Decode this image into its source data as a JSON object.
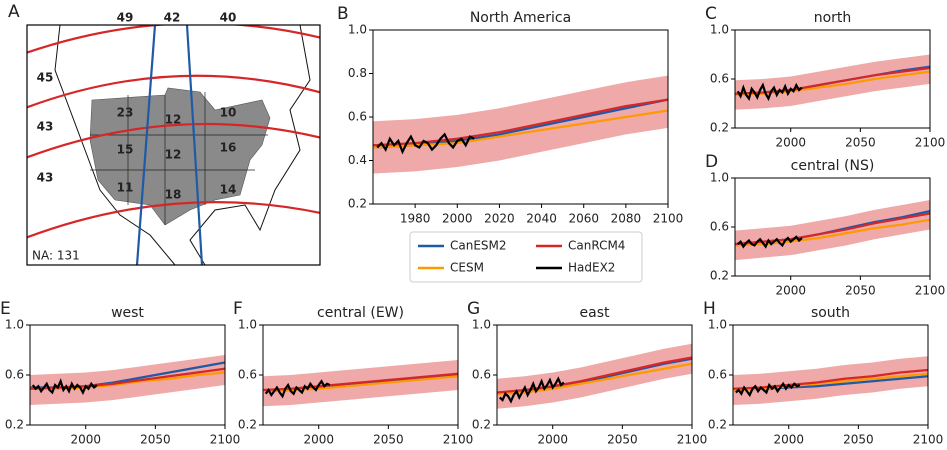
{
  "chart_data": [
    {
      "type": "map",
      "label": "A",
      "meridians": [
        "49",
        "42",
        "40"
      ],
      "parallels": [
        "45",
        "43",
        "43"
      ],
      "regions": [
        "23",
        "12",
        "10",
        "15",
        "12",
        "16",
        "11",
        "18",
        "14"
      ],
      "note": "NA: 131"
    },
    {
      "type": "line",
      "label": "B",
      "title": "North America",
      "legend": "below",
      "xlim": [
        1960,
        2100
      ],
      "ylim": [
        0.2,
        1
      ],
      "xticks": [
        1980,
        2000,
        2020,
        2040,
        2060,
        2080,
        2100
      ],
      "yticks": [
        0.2,
        0.4,
        0.6,
        0.8,
        {
          "value": 1,
          "label": "1.0"
        }
      ],
      "x": [
        1960,
        1980,
        2000,
        2020,
        2040,
        2060,
        2080,
        2100
      ],
      "series": [
        {
          "name": "CanESM2",
          "color": "#1f5aa6",
          "values": [
            0.46,
            0.47,
            0.49,
            0.52,
            0.56,
            0.6,
            0.64,
            0.68
          ]
        },
        {
          "name": "CESM",
          "color": "#ff9900",
          "values": [
            0.46,
            0.47,
            0.48,
            0.51,
            0.54,
            0.57,
            0.6,
            0.63
          ]
        },
        {
          "name": "CanRCM4",
          "color": "#d62728",
          "values": [
            0.47,
            0.48,
            0.5,
            0.53,
            0.57,
            0.61,
            0.65,
            0.68
          ],
          "lower": [
            0.34,
            0.35,
            0.37,
            0.4,
            0.44,
            0.48,
            0.52,
            0.55
          ],
          "upper": [
            0.58,
            0.59,
            0.61,
            0.64,
            0.68,
            0.72,
            0.76,
            0.79
          ]
        },
        {
          "name": "HadEX2",
          "color": "#000000",
          "x": [
            1962,
            1964,
            1966,
            1968,
            1970,
            1972,
            1974,
            1976,
            1978,
            1980,
            1982,
            1984,
            1986,
            1988,
            1990,
            1992,
            1994,
            1996,
            1998,
            2000,
            2002,
            2004,
            2006,
            2008
          ],
          "values": [
            0.46,
            0.48,
            0.45,
            0.5,
            0.47,
            0.49,
            0.44,
            0.48,
            0.51,
            0.47,
            0.46,
            0.49,
            0.48,
            0.45,
            0.47,
            0.5,
            0.52,
            0.48,
            0.46,
            0.49,
            0.5,
            0.47,
            0.51,
            0.5
          ]
        }
      ]
    },
    {
      "type": "line",
      "label": "C",
      "title": "north",
      "xlim": [
        1960,
        2100
      ],
      "ylim": [
        0.2,
        1
      ],
      "xticks": [
        2000,
        2050,
        2100
      ],
      "yticks": [
        0.2,
        0.6,
        {
          "value": 1,
          "label": "1.0"
        }
      ],
      "x": [
        1960,
        1980,
        2000,
        2020,
        2040,
        2060,
        2080,
        2100
      ],
      "series": [
        {
          "color": "#1f5aa6",
          "values": [
            0.48,
            0.49,
            0.51,
            0.55,
            0.59,
            0.63,
            0.67,
            0.7
          ]
        },
        {
          "color": "#ff9900",
          "values": [
            0.47,
            0.48,
            0.5,
            0.53,
            0.56,
            0.6,
            0.63,
            0.66
          ]
        },
        {
          "color": "#d62728",
          "values": [
            0.48,
            0.49,
            0.51,
            0.55,
            0.59,
            0.63,
            0.66,
            0.69
          ],
          "lower": [
            0.35,
            0.36,
            0.38,
            0.42,
            0.46,
            0.5,
            0.53,
            0.56
          ],
          "upper": [
            0.59,
            0.6,
            0.62,
            0.66,
            0.7,
            0.74,
            0.77,
            0.8
          ]
        },
        {
          "color": "#000000",
          "x": [
            1962,
            1964,
            1966,
            1968,
            1970,
            1972,
            1974,
            1976,
            1978,
            1980,
            1982,
            1984,
            1986,
            1988,
            1990,
            1992,
            1994,
            1996,
            1998,
            2000,
            2002,
            2004,
            2006,
            2008
          ],
          "values": [
            0.5,
            0.46,
            0.53,
            0.47,
            0.44,
            0.52,
            0.49,
            0.45,
            0.51,
            0.55,
            0.48,
            0.44,
            0.5,
            0.53,
            0.47,
            0.51,
            0.49,
            0.54,
            0.48,
            0.52,
            0.5,
            0.55,
            0.51,
            0.53
          ]
        }
      ]
    },
    {
      "type": "line",
      "label": "D",
      "title": "central (NS)",
      "xlim": [
        1960,
        2100
      ],
      "ylim": [
        0.2,
        1
      ],
      "xticks": [
        2000,
        2050,
        2100
      ],
      "yticks": [
        0.2,
        0.6,
        {
          "value": 1,
          "label": "1.0"
        }
      ],
      "x": [
        1960,
        1980,
        2000,
        2020,
        2040,
        2060,
        2080,
        2100
      ],
      "series": [
        {
          "color": "#1f5aa6",
          "values": [
            0.46,
            0.48,
            0.5,
            0.54,
            0.59,
            0.64,
            0.68,
            0.73
          ]
        },
        {
          "color": "#ff9900",
          "values": [
            0.45,
            0.46,
            0.48,
            0.51,
            0.55,
            0.59,
            0.62,
            0.66
          ]
        },
        {
          "color": "#d62728",
          "values": [
            0.46,
            0.48,
            0.5,
            0.54,
            0.58,
            0.63,
            0.67,
            0.71
          ],
          "lower": [
            0.33,
            0.35,
            0.37,
            0.41,
            0.45,
            0.5,
            0.54,
            0.58
          ],
          "upper": [
            0.57,
            0.59,
            0.61,
            0.65,
            0.69,
            0.74,
            0.78,
            0.82
          ]
        },
        {
          "color": "#000000",
          "x": [
            1962,
            1964,
            1966,
            1968,
            1970,
            1972,
            1974,
            1976,
            1978,
            1980,
            1982,
            1984,
            1986,
            1988,
            1990,
            1992,
            1994,
            1996,
            1998,
            2000,
            2002,
            2004,
            2006,
            2008
          ],
          "values": [
            0.46,
            0.48,
            0.44,
            0.47,
            0.49,
            0.46,
            0.45,
            0.48,
            0.5,
            0.47,
            0.44,
            0.49,
            0.46,
            0.48,
            0.5,
            0.47,
            0.45,
            0.49,
            0.51,
            0.48,
            0.5,
            0.52,
            0.49,
            0.51
          ]
        }
      ]
    },
    {
      "type": "line",
      "label": "E",
      "title": "west",
      "xlim": [
        1960,
        2100
      ],
      "ylim": [
        0.2,
        1
      ],
      "xticks": [
        2000,
        2050,
        2100
      ],
      "yticks": [
        0.2,
        0.6,
        {
          "value": 1,
          "label": "1.0"
        }
      ],
      "x": [
        1960,
        1980,
        2000,
        2020,
        2040,
        2060,
        2080,
        2100
      ],
      "series": [
        {
          "color": "#1f5aa6",
          "values": [
            0.5,
            0.5,
            0.51,
            0.54,
            0.58,
            0.62,
            0.66,
            0.7
          ]
        },
        {
          "color": "#ff9900",
          "values": [
            0.49,
            0.49,
            0.5,
            0.52,
            0.55,
            0.57,
            0.6,
            0.62
          ]
        },
        {
          "color": "#d62728",
          "values": [
            0.49,
            0.5,
            0.51,
            0.53,
            0.56,
            0.59,
            0.62,
            0.65
          ],
          "lower": [
            0.36,
            0.37,
            0.38,
            0.4,
            0.43,
            0.46,
            0.49,
            0.52
          ],
          "upper": [
            0.6,
            0.61,
            0.62,
            0.64,
            0.67,
            0.7,
            0.73,
            0.76
          ]
        },
        {
          "color": "#000000",
          "x": [
            1962,
            1964,
            1966,
            1968,
            1970,
            1972,
            1974,
            1976,
            1978,
            1980,
            1982,
            1984,
            1986,
            1988,
            1990,
            1992,
            1994,
            1996,
            1998,
            2000,
            2002,
            2004,
            2006,
            2008
          ],
          "values": [
            0.52,
            0.49,
            0.51,
            0.47,
            0.5,
            0.53,
            0.48,
            0.46,
            0.52,
            0.5,
            0.55,
            0.48,
            0.51,
            0.47,
            0.53,
            0.49,
            0.52,
            0.5,
            0.46,
            0.51,
            0.49,
            0.53,
            0.5,
            0.52
          ]
        }
      ]
    },
    {
      "type": "line",
      "label": "F",
      "title": "central (EW)",
      "xlim": [
        1960,
        2100
      ],
      "ylim": [
        0.2,
        1
      ],
      "xticks": [
        2000,
        2050,
        2100
      ],
      "yticks": [
        0.2,
        0.6,
        {
          "value": 1,
          "label": "1.0"
        }
      ],
      "x": [
        1960,
        1980,
        2000,
        2020,
        2040,
        2060,
        2080,
        2100
      ],
      "series": [
        {
          "color": "#1f5aa6",
          "values": [
            0.47,
            0.48,
            0.5,
            0.52,
            0.54,
            0.56,
            0.58,
            0.6
          ]
        },
        {
          "color": "#ff9900",
          "values": [
            0.47,
            0.48,
            0.49,
            0.51,
            0.53,
            0.55,
            0.57,
            0.59
          ]
        },
        {
          "color": "#d62728",
          "values": [
            0.48,
            0.49,
            0.51,
            0.53,
            0.55,
            0.57,
            0.59,
            0.61
          ],
          "lower": [
            0.35,
            0.36,
            0.38,
            0.4,
            0.42,
            0.44,
            0.46,
            0.48
          ],
          "upper": [
            0.59,
            0.6,
            0.62,
            0.64,
            0.66,
            0.68,
            0.7,
            0.72
          ]
        },
        {
          "color": "#000000",
          "x": [
            1962,
            1964,
            1966,
            1968,
            1970,
            1972,
            1974,
            1976,
            1978,
            1980,
            1982,
            1984,
            1986,
            1988,
            1990,
            1992,
            1994,
            1996,
            1998,
            2000,
            2002,
            2004,
            2006,
            2008
          ],
          "values": [
            0.45,
            0.48,
            0.44,
            0.47,
            0.5,
            0.46,
            0.43,
            0.49,
            0.52,
            0.47,
            0.45,
            0.5,
            0.48,
            0.46,
            0.51,
            0.49,
            0.53,
            0.5,
            0.48,
            0.52,
            0.55,
            0.51,
            0.53,
            0.52
          ]
        }
      ]
    },
    {
      "type": "line",
      "label": "G",
      "title": "east",
      "xlim": [
        1960,
        2100
      ],
      "ylim": [
        0.2,
        1
      ],
      "xticks": [
        2000,
        2050,
        2100
      ],
      "yticks": [
        0.2,
        0.6,
        {
          "value": 1,
          "label": "1.0"
        }
      ],
      "x": [
        1960,
        1980,
        2000,
        2020,
        2040,
        2060,
        2080,
        2100
      ],
      "series": [
        {
          "color": "#1f5aa6",
          "values": [
            0.45,
            0.47,
            0.5,
            0.54,
            0.59,
            0.64,
            0.69,
            0.73
          ]
        },
        {
          "color": "#ff9900",
          "values": [
            0.45,
            0.46,
            0.49,
            0.53,
            0.57,
            0.61,
            0.65,
            0.69
          ]
        },
        {
          "color": "#d62728",
          "values": [
            0.46,
            0.48,
            0.51,
            0.55,
            0.6,
            0.65,
            0.7,
            0.74
          ],
          "lower": [
            0.33,
            0.35,
            0.38,
            0.42,
            0.47,
            0.52,
            0.57,
            0.61
          ],
          "upper": [
            0.57,
            0.59,
            0.62,
            0.66,
            0.71,
            0.76,
            0.81,
            0.85
          ]
        },
        {
          "color": "#000000",
          "x": [
            1962,
            1964,
            1966,
            1968,
            1970,
            1972,
            1974,
            1976,
            1978,
            1980,
            1982,
            1984,
            1986,
            1988,
            1990,
            1992,
            1994,
            1996,
            1998,
            2000,
            2002,
            2004,
            2006,
            2008
          ],
          "values": [
            0.42,
            0.4,
            0.45,
            0.43,
            0.39,
            0.44,
            0.47,
            0.42,
            0.46,
            0.5,
            0.44,
            0.48,
            0.53,
            0.47,
            0.5,
            0.55,
            0.49,
            0.52,
            0.56,
            0.5,
            0.53,
            0.57,
            0.52,
            0.54
          ]
        }
      ]
    },
    {
      "type": "line",
      "label": "H",
      "title": "south",
      "xlim": [
        1960,
        2100
      ],
      "ylim": [
        0.2,
        1
      ],
      "xticks": [
        2000,
        2050,
        2100
      ],
      "yticks": [
        0.2,
        0.6,
        {
          "value": 1,
          "label": "1.0"
        }
      ],
      "x": [
        1960,
        1980,
        2000,
        2020,
        2040,
        2060,
        2080,
        2100
      ],
      "series": [
        {
          "color": "#1f5aa6",
          "values": [
            0.48,
            0.49,
            0.5,
            0.51,
            0.53,
            0.55,
            0.57,
            0.59
          ]
        },
        {
          "color": "#ff9900",
          "values": [
            0.48,
            0.49,
            0.51,
            0.53,
            0.55,
            0.57,
            0.59,
            0.61
          ]
        },
        {
          "color": "#d62728",
          "values": [
            0.49,
            0.5,
            0.52,
            0.54,
            0.57,
            0.59,
            0.62,
            0.64
          ],
          "lower": [
            0.36,
            0.37,
            0.39,
            0.41,
            0.44,
            0.46,
            0.49,
            0.51
          ],
          "upper": [
            0.6,
            0.61,
            0.63,
            0.65,
            0.68,
            0.7,
            0.73,
            0.75
          ]
        },
        {
          "color": "#000000",
          "x": [
            1962,
            1964,
            1966,
            1968,
            1970,
            1972,
            1974,
            1976,
            1978,
            1980,
            1982,
            1984,
            1986,
            1988,
            1990,
            1992,
            1994,
            1996,
            1998,
            2000,
            2002,
            2004,
            2006,
            2008
          ],
          "values": [
            0.46,
            0.48,
            0.45,
            0.5,
            0.47,
            0.44,
            0.49,
            0.51,
            0.47,
            0.5,
            0.48,
            0.46,
            0.52,
            0.49,
            0.51,
            0.47,
            0.5,
            0.53,
            0.49,
            0.52,
            0.5,
            0.53,
            0.51,
            0.52
          ]
        }
      ]
    }
  ]
}
